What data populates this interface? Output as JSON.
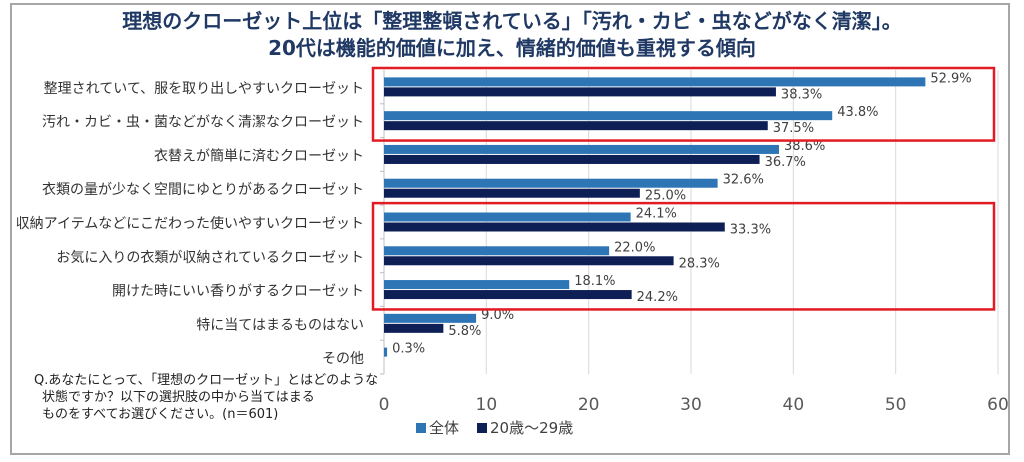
{
  "title_lines": [
    "理想のクローゼット上位は「整理整頓されている」「汚れ・カビ・虫などがなく清潔」。",
    "20代は機能的価値に加え、情緒的価値も重視する傾向"
  ],
  "note_lines": [
    "Q.あなたにとって、「理想のクローゼット」とはどのような",
    "状態ですか？以下の選択肢の中から当てはまる",
    "ものをすべてお選びください。(n＝601)"
  ],
  "colors": {
    "series1": "#2e75b6",
    "series2": "#0d1f55",
    "highlight": "#e31b23",
    "grid": "#d9d9d9",
    "title": "#1f3864"
  },
  "chart_data": {
    "type": "bar",
    "orientation": "horizontal",
    "categories": [
      "整理されていて、服を取り出しやすいクローゼット",
      "汚れ・カビ・虫・菌などがなく清潔なクローゼット",
      "衣替えが簡単に済むクローゼット",
      "衣類の量が少なく空間にゆとりがあるクローゼット",
      "収納アイテムなどにこだわった使いやすいクローゼット",
      "お気に入りの衣類が収納されているクローゼット",
      "開けた時にいい香りがするクローゼット",
      "特に当てはまるものはない",
      "その他"
    ],
    "series": [
      {
        "name": "全体",
        "values": [
          52.9,
          43.8,
          38.6,
          32.6,
          24.1,
          22.0,
          18.1,
          9.0,
          0.3
        ],
        "labels": [
          "52.9%",
          "43.8%",
          "38.6%",
          "32.6%",
          "24.1%",
          "22.0%",
          "18.1%",
          "9.0%",
          "0.3%"
        ]
      },
      {
        "name": "20歳～29歳",
        "values": [
          38.3,
          37.5,
          36.7,
          25.0,
          33.3,
          28.3,
          24.2,
          5.8,
          null
        ],
        "labels": [
          "38.3%",
          "37.5%",
          "36.7%",
          "25.0%",
          "33.3%",
          "28.3%",
          "24.2%",
          "5.8%",
          ""
        ]
      }
    ],
    "xlim": [
      0,
      60
    ],
    "xticks": [
      "0",
      "10",
      "20",
      "30",
      "40",
      "50",
      "60"
    ],
    "grid": true,
    "legend": "bottom",
    "highlight_groups": [
      [
        0,
        1
      ],
      [
        4,
        5,
        6
      ]
    ]
  }
}
